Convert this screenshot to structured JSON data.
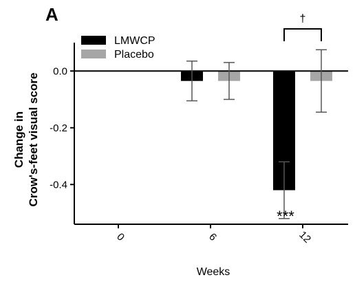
{
  "chart_data": {
    "type": "bar",
    "panel_label": "A",
    "categories": [
      "0",
      "6",
      "12"
    ],
    "xlabel": "Weeks",
    "ylabel_lines": [
      "Change in",
      "Crow's-feet visual score"
    ],
    "ylim": [
      -0.54,
      0.1
    ],
    "yticks": [
      0.0,
      -0.2,
      -0.4
    ],
    "ytick_labels": [
      "0.0",
      "-0.2",
      "-0.4"
    ],
    "legend_position": "top-left",
    "series": [
      {
        "name": "LMWCP",
        "color": "#000000",
        "values": [
          null,
          -0.035,
          -0.42
        ],
        "errors": [
          null,
          0.07,
          0.1
        ]
      },
      {
        "name": "Placebo",
        "color": "#a6a6a6",
        "values": [
          null,
          -0.035,
          -0.035
        ],
        "errors": [
          null,
          0.065,
          0.11
        ]
      }
    ],
    "annotations": {
      "significance_stars": {
        "text": "***",
        "category": "12",
        "series": "LMWCP"
      },
      "dagger": {
        "text": "†",
        "category": "12",
        "between": [
          "LMWCP",
          "Placebo"
        ]
      }
    }
  }
}
